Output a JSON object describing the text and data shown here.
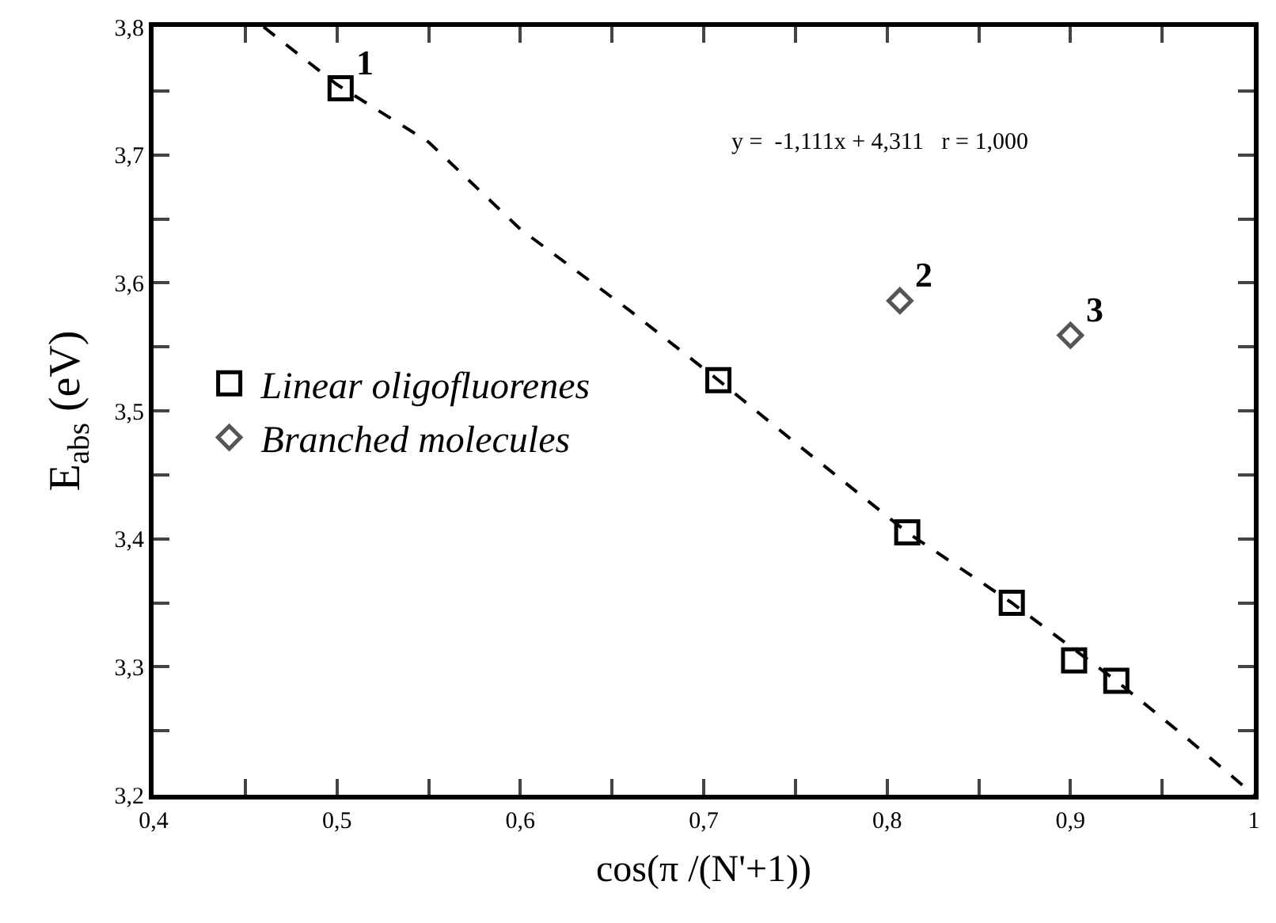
{
  "chart_data": {
    "type": "scatter",
    "xlabel": "cos(π /(N'+1))",
    "ylabel": "E$_{abs}$ (eV)",
    "xlim": [
      0.4,
      1
    ],
    "ylim": [
      3.2,
      3.8
    ],
    "xticks": [
      {
        "value": 0.4,
        "label": "0,4"
      },
      {
        "value": 0.45,
        "label": null
      },
      {
        "value": 0.5,
        "label": "0,5"
      },
      {
        "value": 0.55,
        "label": null
      },
      {
        "value": 0.6,
        "label": "0,6"
      },
      {
        "value": 0.65,
        "label": null
      },
      {
        "value": 0.7,
        "label": "0,7"
      },
      {
        "value": 0.75,
        "label": null
      },
      {
        "value": 0.8,
        "label": "0,8"
      },
      {
        "value": 0.85,
        "label": null
      },
      {
        "value": 0.9,
        "label": "0,9"
      },
      {
        "value": 0.95,
        "label": null
      },
      1
    ],
    "yticks": [
      {
        "value": 3.2,
        "label": "3,2"
      },
      {
        "value": 3.25,
        "label": null
      },
      {
        "value": 3.3,
        "label": "3,3"
      },
      {
        "value": 3.35,
        "label": null
      },
      {
        "value": 3.4,
        "label": "3,4"
      },
      {
        "value": 3.45,
        "label": null
      },
      {
        "value": 3.5,
        "label": "3,5"
      },
      {
        "value": 3.55,
        "label": null
      },
      {
        "value": 3.6,
        "label": "3,6"
      },
      {
        "value": 3.65,
        "label": null
      },
      {
        "value": 3.7,
        "label": "3,7"
      },
      {
        "value": 3.75,
        "label": null
      },
      {
        "value": 3.8,
        "label": "3,8"
      }
    ],
    "grid": false,
    "legend": "left",
    "series": [
      {
        "type": "line",
        "color": "#000000",
        "line_style": "dashed",
        "marker": "none",
        "x": [
          0.46,
          0.5,
          0.55,
          0.6,
          0.66,
          0.708,
          0.75,
          0.811,
          0.868,
          0.925,
          0.962,
          1.0
        ],
        "values": [
          3.8,
          3.755,
          3.71,
          3.642,
          3.578,
          3.524,
          3.475,
          3.405,
          3.35,
          3.289,
          3.246,
          3.2
        ]
      },
      {
        "name": "Linear oligofluorenes",
        "type": "scatter",
        "color": "#000000",
        "marker": "square",
        "x": [
          0.502,
          0.708,
          0.811,
          0.868,
          0.902,
          0.925
        ],
        "values": [
          3.752,
          3.524,
          3.405,
          3.35,
          3.305,
          3.289
        ]
      },
      {
        "name": "Branched molecules",
        "type": "scatter",
        "color": "#555555",
        "marker": "diamond",
        "x": [
          0.807,
          0.9
        ],
        "values": [
          3.586,
          3.559
        ]
      }
    ],
    "annotations": [
      {
        "text": "1",
        "x": 0.502,
        "y": 3.752
      },
      {
        "text": "2",
        "x": 0.807,
        "y": 3.586
      },
      {
        "text": "3",
        "x": 0.9,
        "y": 3.559
      },
      "y =  -1,111x + 4,311   r = 1,000"
    ]
  }
}
